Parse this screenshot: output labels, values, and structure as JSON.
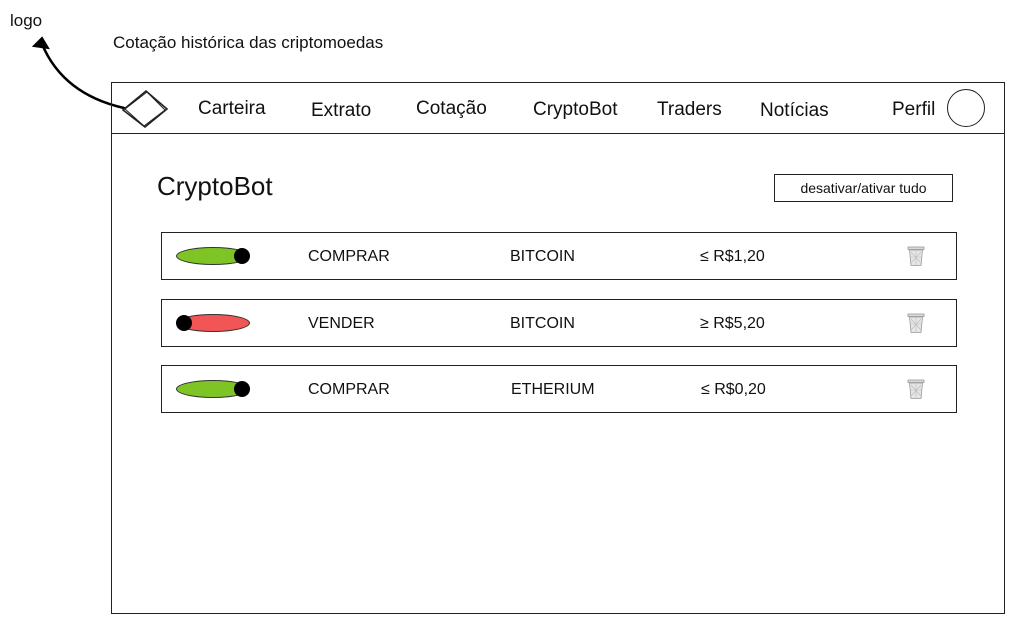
{
  "annotations": {
    "logo_label": "logo",
    "caption": "Cotação histórica das criptomoedas"
  },
  "nav": {
    "logo_icon": "diamond-logo-icon",
    "items": [
      {
        "label": "Carteira"
      },
      {
        "label": "Extrato"
      },
      {
        "label": "Cotação"
      },
      {
        "label": "CryptoBot"
      },
      {
        "label": "Traders"
      },
      {
        "label": "Notícias"
      },
      {
        "label": "Perfil"
      }
    ],
    "avatar_icon": "profile-avatar-icon"
  },
  "page": {
    "title": "CryptoBot",
    "toggle_all_label": "desativar/ativar tudo"
  },
  "colors": {
    "toggle_on": "#7ec424",
    "toggle_off": "#f25555"
  },
  "bots": [
    {
      "active": true,
      "action": "COMPRAR",
      "coin": "BITCOIN",
      "condition": "≤ R$1,20",
      "delete_icon": "trash-icon"
    },
    {
      "active": false,
      "action": "VENDER",
      "coin": "BITCOIN",
      "condition": "≥ R$5,20",
      "delete_icon": "trash-icon"
    },
    {
      "active": true,
      "action": "COMPRAR",
      "coin": "ETHERIUM",
      "condition": "≤ R$0,20",
      "delete_icon": "trash-icon"
    }
  ]
}
